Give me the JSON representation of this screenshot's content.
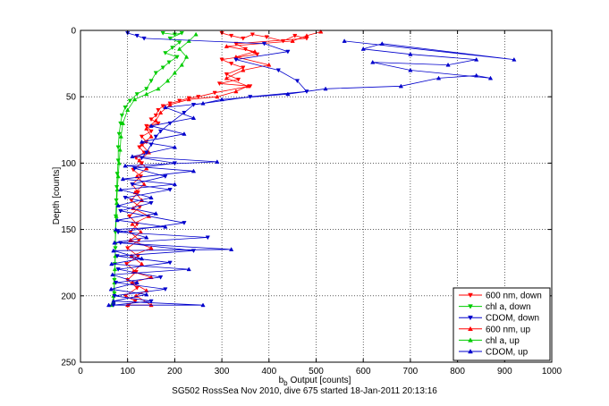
{
  "chart_data": {
    "type": "scatter",
    "title": "",
    "xlabel": "Output [counts]",
    "xlabel_prefix": "b",
    "xlabel_subscript": "b",
    "ylabel": "Depth [counts]",
    "xlim": [
      0,
      1000
    ],
    "ylim": [
      0,
      250
    ],
    "y_reversed": true,
    "grid": true,
    "grid_style": "dotted",
    "legend_position": "bottom-right",
    "x_ticks": [
      0,
      100,
      200,
      300,
      400,
      500,
      600,
      700,
      800,
      900,
      1000
    ],
    "y_ticks": [
      0,
      50,
      100,
      150,
      200,
      250
    ],
    "footer": "SG502 RossSea Nov 2010, dive 675 started 18-Jan-2011 20:13:16",
    "series": [
      {
        "name": "600 nm, down",
        "color": "#ff0000",
        "marker": "triangle-down",
        "line": true,
        "points": [
          [
            300,
            2
          ],
          [
            320,
            4
          ],
          [
            345,
            6
          ],
          [
            365,
            3
          ],
          [
            395,
            5
          ],
          [
            430,
            8
          ],
          [
            455,
            4
          ],
          [
            480,
            6
          ],
          [
            330,
            10
          ],
          [
            350,
            14
          ],
          [
            375,
            18
          ],
          [
            300,
            22
          ],
          [
            320,
            25
          ],
          [
            345,
            28
          ],
          [
            310,
            33
          ],
          [
            335,
            37
          ],
          [
            295,
            40
          ],
          [
            360,
            42
          ],
          [
            285,
            47
          ],
          [
            250,
            50
          ],
          [
            230,
            51
          ],
          [
            210,
            53
          ],
          [
            190,
            55
          ],
          [
            175,
            57
          ],
          [
            165,
            60
          ],
          [
            160,
            64
          ],
          [
            150,
            67
          ],
          [
            165,
            70
          ],
          [
            140,
            72
          ],
          [
            150,
            76
          ],
          [
            130,
            80
          ],
          [
            140,
            84
          ],
          [
            125,
            88
          ],
          [
            135,
            92
          ],
          [
            118,
            96
          ],
          [
            130,
            100
          ],
          [
            112,
            105
          ],
          [
            128,
            110
          ],
          [
            110,
            116
          ],
          [
            122,
            122
          ],
          [
            108,
            128
          ],
          [
            126,
            133
          ],
          [
            104,
            140
          ],
          [
            120,
            146
          ],
          [
            106,
            152
          ],
          [
            124,
            158
          ],
          [
            100,
            164
          ],
          [
            122,
            170
          ],
          [
            98,
            176
          ],
          [
            118,
            182
          ],
          [
            100,
            188
          ],
          [
            120,
            194
          ],
          [
            96,
            200
          ],
          [
            116,
            204
          ],
          [
            102,
            207
          ]
        ]
      },
      {
        "name": "chl a, down",
        "color": "#00cc00",
        "marker": "triangle-down",
        "line": true,
        "points": [
          [
            175,
            2
          ],
          [
            200,
            3
          ],
          [
            215,
            2
          ],
          [
            190,
            6
          ],
          [
            210,
            9
          ],
          [
            195,
            13
          ],
          [
            180,
            17
          ],
          [
            205,
            20
          ],
          [
            188,
            24
          ],
          [
            175,
            28
          ],
          [
            160,
            32
          ],
          [
            150,
            38
          ],
          [
            140,
            44
          ],
          [
            120,
            48
          ],
          [
            105,
            53
          ],
          [
            95,
            58
          ],
          [
            88,
            64
          ],
          [
            85,
            70
          ],
          [
            82,
            78
          ],
          [
            80,
            88
          ],
          [
            80,
            98
          ],
          [
            78,
            108
          ],
          [
            77,
            118
          ],
          [
            76,
            128
          ],
          [
            75,
            140
          ],
          [
            74,
            152
          ],
          [
            74,
            164
          ],
          [
            73,
            176
          ],
          [
            72,
            188
          ],
          [
            72,
            198
          ],
          [
            70,
            206
          ]
        ]
      },
      {
        "name": "CDOM, down",
        "color": "#0000cc",
        "marker": "triangle-down",
        "line": true,
        "points": [
          [
            100,
            2
          ],
          [
            120,
            4
          ],
          [
            135,
            6
          ],
          [
            390,
            10
          ],
          [
            440,
            16
          ],
          [
            330,
            22
          ],
          [
            420,
            30
          ],
          [
            460,
            38
          ],
          [
            480,
            46
          ],
          [
            360,
            50
          ],
          [
            240,
            56
          ],
          [
            220,
            62
          ],
          [
            190,
            70
          ],
          [
            170,
            76
          ],
          [
            160,
            80
          ],
          [
            150,
            86
          ],
          [
            140,
            92
          ],
          [
            130,
            96
          ],
          [
            200,
            100
          ],
          [
            115,
            104
          ],
          [
            180,
            110
          ],
          [
            110,
            116
          ],
          [
            190,
            120
          ],
          [
            95,
            126
          ],
          [
            150,
            130
          ],
          [
            85,
            136
          ],
          [
            220,
            145
          ],
          [
            80,
            152
          ],
          [
            270,
            156
          ],
          [
            85,
            160
          ],
          [
            240,
            166
          ],
          [
            78,
            170
          ],
          [
            190,
            175
          ],
          [
            80,
            180
          ],
          [
            170,
            186
          ],
          [
            75,
            190
          ],
          [
            180,
            195
          ],
          [
            72,
            200
          ],
          [
            150,
            204
          ],
          [
            70,
            207
          ]
        ]
      },
      {
        "name": "600 nm, up",
        "color": "#ff0000",
        "marker": "triangle-up",
        "line": true,
        "points": [
          [
            100,
            207
          ],
          [
            150,
            207
          ],
          [
            118,
            200
          ],
          [
            140,
            196
          ],
          [
            110,
            190
          ],
          [
            150,
            186
          ],
          [
            112,
            182
          ],
          [
            130,
            176
          ],
          [
            108,
            170
          ],
          [
            150,
            164
          ],
          [
            106,
            158
          ],
          [
            128,
            152
          ],
          [
            110,
            146
          ],
          [
            145,
            140
          ],
          [
            112,
            134
          ],
          [
            130,
            128
          ],
          [
            116,
            122
          ],
          [
            135,
            116
          ],
          [
            120,
            110
          ],
          [
            140,
            104
          ],
          [
            125,
            98
          ],
          [
            145,
            92
          ],
          [
            130,
            86
          ],
          [
            150,
            80
          ],
          [
            140,
            74
          ],
          [
            160,
            68
          ],
          [
            170,
            62
          ],
          [
            190,
            56
          ],
          [
            230,
            52
          ],
          [
            290,
            50
          ],
          [
            330,
            46
          ],
          [
            355,
            42
          ],
          [
            310,
            36
          ],
          [
            345,
            30
          ],
          [
            400,
            26
          ],
          [
            330,
            20
          ],
          [
            370,
            16
          ],
          [
            310,
            12
          ],
          [
            450,
            8
          ],
          [
            480,
            4
          ],
          [
            510,
            1
          ]
        ]
      },
      {
        "name": "chl a, up",
        "color": "#00cc00",
        "marker": "triangle-up",
        "line": true,
        "points": [
          [
            66,
            207
          ],
          [
            70,
            200
          ],
          [
            72,
            190
          ],
          [
            73,
            180
          ],
          [
            74,
            170
          ],
          [
            74,
            160
          ],
          [
            75,
            150
          ],
          [
            76,
            140
          ],
          [
            77,
            130
          ],
          [
            78,
            120
          ],
          [
            80,
            110
          ],
          [
            82,
            100
          ],
          [
            84,
            90
          ],
          [
            86,
            80
          ],
          [
            90,
            70
          ],
          [
            100,
            60
          ],
          [
            115,
            52
          ],
          [
            140,
            48
          ],
          [
            165,
            44
          ],
          [
            185,
            38
          ],
          [
            200,
            32
          ],
          [
            215,
            26
          ],
          [
            225,
            20
          ],
          [
            210,
            14
          ],
          [
            230,
            8
          ],
          [
            245,
            3
          ]
        ]
      },
      {
        "name": "CDOM, up",
        "color": "#0000cc",
        "marker": "triangle-up",
        "line": true,
        "points": [
          [
            60,
            207
          ],
          [
            260,
            207
          ],
          [
            70,
            204
          ],
          [
            140,
            199
          ],
          [
            65,
            195
          ],
          [
            120,
            190
          ],
          [
            68,
            184
          ],
          [
            230,
            180
          ],
          [
            66,
            176
          ],
          [
            130,
            172
          ],
          [
            70,
            166
          ],
          [
            320,
            165
          ],
          [
            72,
            160
          ],
          [
            140,
            156
          ],
          [
            75,
            150
          ],
          [
            180,
            148
          ],
          [
            78,
            143
          ],
          [
            160,
            138
          ],
          [
            80,
            132
          ],
          [
            150,
            126
          ],
          [
            85,
            120
          ],
          [
            200,
            116
          ],
          [
            90,
            112
          ],
          [
            240,
            106
          ],
          [
            95,
            102
          ],
          [
            290,
            99
          ],
          [
            110,
            95
          ],
          [
            200,
            88
          ],
          [
            130,
            84
          ],
          [
            220,
            78
          ],
          [
            150,
            72
          ],
          [
            240,
            66
          ],
          [
            180,
            58
          ],
          [
            260,
            55
          ],
          [
            300,
            52
          ],
          [
            440,
            48
          ],
          [
            520,
            44
          ],
          [
            680,
            42
          ],
          [
            760,
            36
          ],
          [
            840,
            34
          ],
          [
            870,
            36
          ],
          [
            700,
            30
          ],
          [
            620,
            24
          ],
          [
            780,
            26
          ],
          [
            840,
            22
          ],
          [
            700,
            18
          ],
          [
            600,
            14
          ],
          [
            640,
            10
          ],
          [
            920,
            22
          ],
          [
            560,
            8
          ]
        ]
      }
    ]
  }
}
